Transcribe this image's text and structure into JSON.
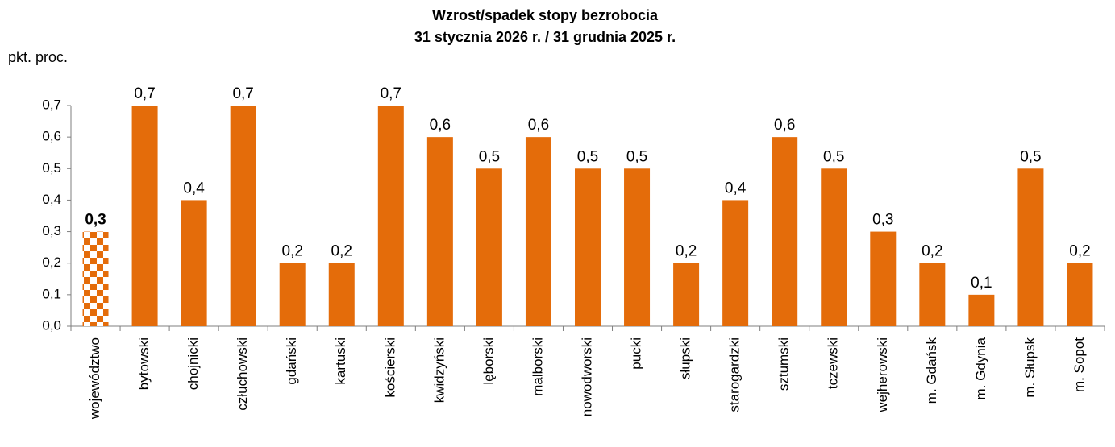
{
  "chart_data": {
    "type": "bar",
    "title": "Wzrost/spadek stopy bezrobocia",
    "subtitle": "31 stycznia 2026 r. / 31 grudnia 2025 r.",
    "y_label": "pkt. proc.",
    "categories": [
      "województwo",
      "bytowski",
      "chojnicki",
      "człuchowski",
      "gdański",
      "kartuski",
      "kościerski",
      "kwidzyński",
      "lęborski",
      "malborski",
      "nowodworski",
      "pucki",
      "słupski",
      "starogardzki",
      "sztumski",
      "tczewski",
      "wejherowski",
      "m. Gdańsk",
      "m. Gdynia",
      "m. Słupsk",
      "m. Sopot"
    ],
    "values": [
      0.3,
      0.7,
      0.4,
      0.7,
      0.2,
      0.2,
      0.7,
      0.6,
      0.5,
      0.6,
      0.5,
      0.5,
      0.2,
      0.4,
      0.6,
      0.5,
      0.3,
      0.2,
      0.1,
      0.5,
      0.2
    ],
    "value_labels": [
      "0,3",
      "0,7",
      "0,4",
      "0,7",
      "0,2",
      "0,2",
      "0,7",
      "0,6",
      "0,5",
      "0,6",
      "0,5",
      "0,5",
      "0,2",
      "0,4",
      "0,6",
      "0,5",
      "0,3",
      "0,2",
      "0,1",
      "0,5",
      "0,2"
    ],
    "color": "#e46c0a",
    "highlight_index": 0,
    "ylim": [
      0,
      0.7
    ],
    "yticks": [
      {
        "value": 0,
        "label": "0,0"
      },
      {
        "value": 0.1,
        "label": "0,1"
      },
      {
        "value": 0.2,
        "label": "0,2"
      },
      {
        "value": 0.3,
        "label": "0,3"
      },
      {
        "value": 0.4,
        "label": "0,4"
      },
      {
        "value": 0.5,
        "label": "0,5"
      },
      {
        "value": 0.6,
        "label": "0,6"
      },
      {
        "value": 0.7,
        "label": "0,7"
      }
    ],
    "grid": false
  }
}
